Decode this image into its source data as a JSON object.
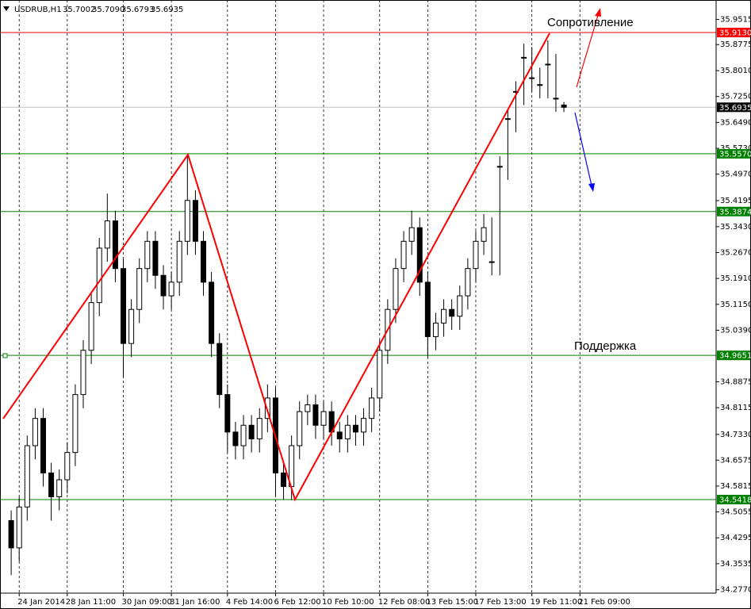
{
  "chart_data": {
    "type": "candlestick",
    "header": {
      "symbol": "USDRUB,H1",
      "ohlc": [
        "35.7002",
        "35.7090",
        "35.6793",
        "35.6935"
      ]
    },
    "annotations": [
      "Сопротивление",
      "Поддержка"
    ],
    "up_color": "#ffffff",
    "down_color": "#000000",
    "wick_color": "#000000",
    "open": [
      34.48,
      34.4,
      34.52,
      34.7,
      34.78,
      34.62,
      34.55,
      34.6,
      34.68,
      34.85,
      34.98,
      35.12,
      35.28,
      35.36,
      35.22,
      35.0,
      35.1,
      35.22,
      35.3,
      35.2,
      35.14,
      35.18,
      35.3,
      35.42,
      35.3,
      35.18,
      35.0,
      34.85,
      34.74,
      34.7,
      34.76,
      34.72,
      34.78,
      34.84,
      34.62,
      34.58,
      34.7,
      34.8,
      34.82,
      34.76,
      34.8,
      34.74,
      34.72,
      34.76,
      34.74,
      34.78,
      34.84,
      34.98,
      35.1,
      35.22,
      35.3,
      35.34,
      35.18,
      35.02,
      35.06,
      35.1,
      35.08,
      35.14,
      35.22,
      35.3,
      35.24,
      35.52,
      35.66,
      35.74,
      35.84,
      35.78,
      35.76,
      35.82,
      35.72,
      35.7002
    ],
    "high": [
      34.51,
      34.55,
      34.73,
      34.81,
      34.81,
      34.65,
      34.63,
      34.71,
      34.88,
      35.01,
      35.15,
      35.31,
      35.44,
      35.39,
      35.25,
      35.13,
      35.25,
      35.33,
      35.33,
      35.23,
      35.21,
      35.33,
      35.55,
      35.45,
      35.33,
      35.21,
      35.03,
      34.88,
      34.77,
      34.79,
      34.79,
      34.81,
      34.88,
      34.87,
      34.65,
      34.73,
      34.83,
      34.85,
      34.85,
      34.83,
      34.83,
      34.77,
      34.79,
      34.79,
      34.81,
      34.87,
      35.01,
      35.13,
      35.25,
      35.33,
      35.39,
      35.37,
      35.21,
      35.09,
      35.13,
      35.13,
      35.17,
      35.25,
      35.33,
      35.38,
      35.37,
      35.55,
      35.69,
      35.77,
      35.88,
      35.87,
      35.81,
      35.89,
      35.85,
      35.709
    ],
    "low": [
      34.32,
      34.36,
      34.48,
      34.66,
      34.58,
      34.48,
      34.51,
      34.56,
      34.64,
      34.81,
      34.94,
      35.08,
      35.24,
      35.18,
      34.9,
      34.96,
      35.06,
      35.18,
      35.16,
      35.1,
      35.1,
      35.14,
      35.26,
      35.26,
      35.14,
      34.96,
      34.81,
      34.68,
      34.66,
      34.66,
      34.68,
      34.68,
      34.74,
      34.55,
      34.542,
      34.54,
      34.66,
      34.76,
      34.72,
      34.72,
      34.7,
      34.68,
      34.68,
      34.7,
      34.7,
      34.74,
      34.8,
      34.94,
      35.06,
      35.18,
      35.26,
      35.14,
      34.96,
      34.98,
      35.02,
      35.04,
      35.04,
      35.1,
      35.18,
      35.26,
      35.2,
      35.2,
      35.48,
      35.62,
      35.7,
      35.74,
      35.72,
      35.72,
      35.68,
      35.6793
    ],
    "close": [
      34.4,
      34.52,
      34.7,
      34.78,
      34.62,
      34.55,
      34.6,
      34.68,
      34.85,
      34.98,
      35.12,
      35.28,
      35.36,
      35.22,
      35.0,
      35.1,
      35.22,
      35.3,
      35.2,
      35.14,
      35.18,
      35.3,
      35.42,
      35.3,
      35.18,
      35.0,
      34.85,
      34.74,
      34.7,
      34.76,
      34.72,
      34.78,
      34.84,
      34.62,
      34.58,
      34.7,
      34.8,
      34.82,
      34.76,
      34.8,
      34.74,
      34.72,
      34.76,
      34.74,
      34.78,
      34.84,
      34.98,
      35.1,
      35.22,
      35.3,
      35.34,
      35.18,
      35.02,
      35.06,
      35.1,
      35.08,
      35.14,
      35.22,
      35.3,
      35.34,
      35.24,
      35.52,
      35.66,
      35.74,
      35.84,
      35.78,
      35.76,
      35.82,
      35.72,
      35.6935
    ],
    "xlim": [
      -1,
      88
    ],
    "xticks": [
      {
        "value": 1,
        "label": "24 Jan 2014"
      },
      {
        "value": 7,
        "label": "28 Jan 11:00"
      },
      {
        "value": 14,
        "label": "30 Jan 09:00"
      },
      {
        "value": 20,
        "label": "31 Jan 16:00"
      },
      {
        "value": 27,
        "label": "4 Feb 14:00"
      },
      {
        "value": 33,
        "label": "6 Feb 12:00"
      },
      {
        "value": 39,
        "label": "10 Feb 10:00"
      },
      {
        "value": 46,
        "label": "12 Feb 08:00"
      },
      {
        "value": 52,
        "label": "13 Feb 15:00"
      },
      {
        "value": 58,
        "label": "17 Feb 13:00"
      },
      {
        "value": 65,
        "label": "19 Feb 11:00"
      },
      {
        "value": 71,
        "label": "21 Feb 09:00"
      }
    ],
    "ylim": [
      34.2671,
      36.0084
    ],
    "yticks": [
      35.9515,
      35.8775,
      {
        "value": 35.801,
        "label": "35.8010"
      },
      {
        "value": 35.725,
        "label": "35.7250"
      },
      {
        "value": 35.649,
        "label": "35.6490"
      },
      {
        "value": 35.573,
        "label": "35.5730"
      },
      {
        "value": 35.497,
        "label": "35.4970"
      },
      35.4195,
      {
        "value": 35.343,
        "label": "35.3430"
      },
      {
        "value": 35.267,
        "label": "35.2670"
      },
      {
        "value": 35.191,
        "label": "35.1910"
      },
      {
        "value": 35.115,
        "label": "35.1150"
      },
      {
        "value": 35.039,
        "label": "35.0390"
      },
      34.8875,
      34.8115,
      {
        "value": 34.733,
        "label": "34.7330"
      },
      34.6575,
      34.5815,
      34.5055,
      34.4295,
      34.3535,
      {
        "value": 34.277,
        "label": "34.2770"
      }
    ],
    "levels": [
      {
        "value": 35.913,
        "label": "35.9130",
        "color": "#ff0000"
      },
      {
        "value": 35.6935,
        "label": "35.6935",
        "color": "#c0c0c0"
      },
      {
        "value": 35.557,
        "label": "35.5570",
        "color": "#008000"
      },
      {
        "value": 35.3874,
        "label": "35.3874",
        "color": "#008000"
      },
      {
        "value": 34.9651,
        "label": "34.9651",
        "color": "#008000"
      },
      {
        "value": 34.5418,
        "label": "34.5418",
        "color": "#008000"
      }
    ]
  }
}
